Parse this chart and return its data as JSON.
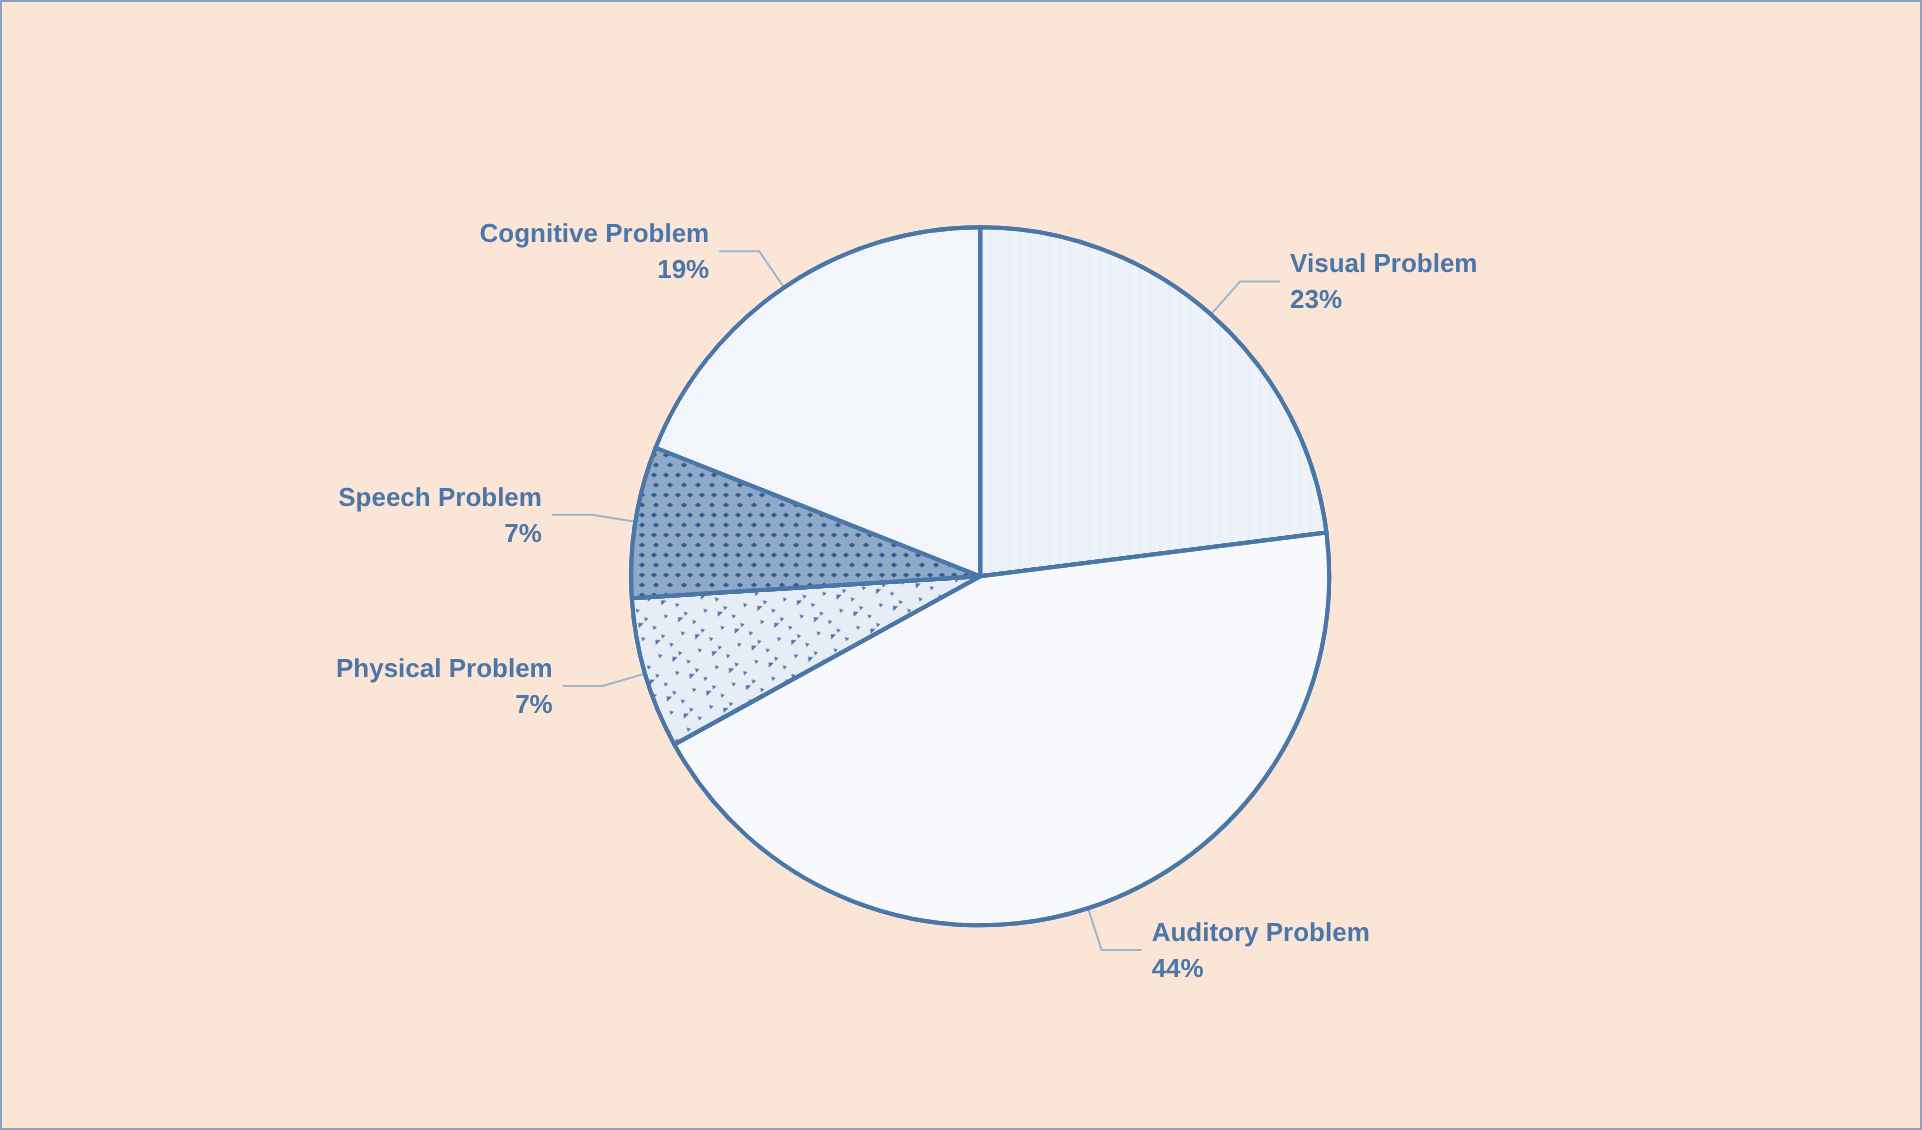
{
  "chart_data": {
    "type": "pie",
    "categories": [
      "Visual Problem",
      "Auditory Problem",
      "Physical Problem",
      "Speech Problem",
      "Cognitive Problem"
    ],
    "values": [
      23,
      44,
      7,
      7,
      19
    ],
    "value_labels": [
      "23%",
      "44%",
      "7%",
      "7%",
      "19%"
    ],
    "colors": [
      "#eef3f9",
      "#f7f9fc",
      "#e6edf5",
      "#8fa9c8",
      "#f2f6fa"
    ],
    "legend": false
  }
}
